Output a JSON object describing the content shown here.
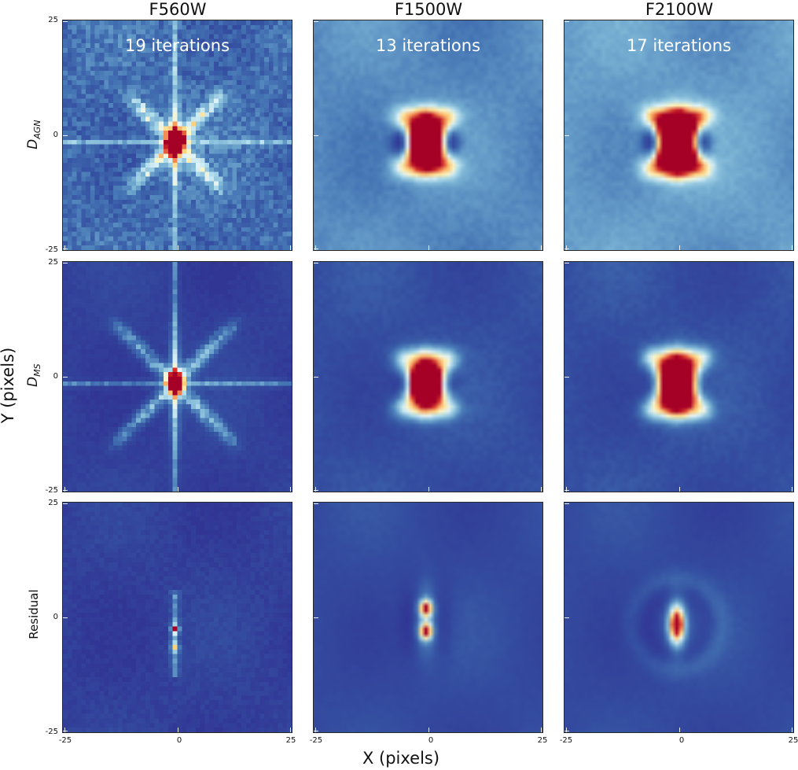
{
  "figure": {
    "column_titles": [
      "F560W",
      "F1500W",
      "F2100W"
    ],
    "row_labels": [
      {
        "main": "D",
        "sub": "AGN"
      },
      {
        "main": "D",
        "sub": "MS"
      },
      {
        "main": "Residual",
        "sub": ""
      }
    ],
    "iterations": [
      "19 iterations",
      "13 iterations",
      "17 iterations"
    ],
    "xlabel": "X (pixels)",
    "ylabel": "Y (pixels)",
    "xticks": [
      "-25",
      "0",
      "25"
    ],
    "yticks": [
      "25",
      "0",
      "-25"
    ]
  },
  "chart_data": {
    "type": "heatmap",
    "title": "",
    "xlabel": "X (pixels)",
    "ylabel": "Y (pixels)",
    "xlim": [
      -25,
      25
    ],
    "ylim": [
      -25,
      25
    ],
    "colormap": "RdYlBu_r",
    "grid": false,
    "columns": [
      "F560W",
      "F1500W",
      "F2100W"
    ],
    "rows": [
      "D_AGN",
      "D_MS",
      "Residual"
    ],
    "annotations": [
      {
        "panel": "D_AGN/F560W",
        "text": "19 iterations"
      },
      {
        "panel": "D_AGN/F1500W",
        "text": "13 iterations"
      },
      {
        "panel": "D_AGN/F2100W",
        "text": "17 iterations"
      }
    ],
    "panels": [
      {
        "row": "D_AGN",
        "column": "F560W",
        "grid": 50,
        "background": 0.22,
        "noise": 0.08,
        "peak": [
          -1,
          -1
        ],
        "peak_value": 0.95,
        "core_sigma": 1.2,
        "x_arms": 0.55,
        "arm_len": 13,
        "spikes": 0.25,
        "side_lobes": 0.0,
        "style": "pixelated-noisy"
      },
      {
        "row": "D_AGN",
        "column": "F1500W",
        "grid": 50,
        "background": 0.3,
        "noise": 0.02,
        "peak": [
          -1,
          -1
        ],
        "peak_value": 1.0,
        "core_sigma": 2.0,
        "x_arms": 0.7,
        "arm_len": 7,
        "spikes": 0.0,
        "side_lobes": -0.35,
        "style": "smooth"
      },
      {
        "row": "D_AGN",
        "column": "F2100W",
        "grid": 50,
        "background": 0.34,
        "noise": 0.02,
        "peak": [
          -1,
          -1
        ],
        "peak_value": 1.0,
        "core_sigma": 2.4,
        "x_arms": 0.7,
        "arm_len": 8,
        "spikes": 0.0,
        "side_lobes": -0.4,
        "style": "smooth"
      },
      {
        "row": "D_MS",
        "column": "F560W",
        "grid": 50,
        "background": 0.05,
        "noise": 0.02,
        "peak": [
          -1,
          -1
        ],
        "peak_value": 0.95,
        "core_sigma": 1.0,
        "x_arms": 0.5,
        "arm_len": 17,
        "spikes": 0.3,
        "side_lobes": 0.0,
        "style": "pixelated"
      },
      {
        "row": "D_MS",
        "column": "F1500W",
        "grid": 50,
        "background": 0.12,
        "noise": 0.02,
        "peak": [
          -1,
          -1
        ],
        "peak_value": 1.0,
        "core_sigma": 2.0,
        "x_arms": 0.7,
        "arm_len": 7,
        "spikes": 0.0,
        "side_lobes": -0.1,
        "style": "smooth"
      },
      {
        "row": "D_MS",
        "column": "F2100W",
        "grid": 50,
        "background": 0.12,
        "noise": 0.02,
        "peak": [
          -1,
          -1
        ],
        "peak_value": 1.0,
        "core_sigma": 2.4,
        "x_arms": 0.7,
        "arm_len": 8,
        "spikes": 0.0,
        "side_lobes": -0.1,
        "style": "smooth"
      },
      {
        "row": "Residual",
        "column": "F560W",
        "grid": 50,
        "background": 0.05,
        "noise": 0.03,
        "peak": [
          -1,
          -3
        ],
        "peak_value": 0.95,
        "core_sigma": 0.6,
        "x_arms": 0.0,
        "arm_len": 0,
        "spikes": 0.0,
        "side_lobes": 0.0,
        "style": "residual-narrow"
      },
      {
        "row": "Residual",
        "column": "F1500W",
        "grid": 50,
        "background": 0.1,
        "noise": 0.01,
        "peak": [
          -1,
          0
        ],
        "peak_value": 0.95,
        "core_sigma": 1.0,
        "x_arms": 0.0,
        "arm_len": 0,
        "spikes": 0.0,
        "side_lobes": -0.1,
        "style": "residual-double"
      },
      {
        "row": "Residual",
        "column": "F2100W",
        "grid": 50,
        "background": 0.1,
        "noise": 0.01,
        "peak": [
          -1,
          -1
        ],
        "peak_value": 0.95,
        "core_sigma": 1.2,
        "x_arms": 0.0,
        "arm_len": 0,
        "spikes": 0.0,
        "side_lobes": -0.1,
        "style": "residual-ring"
      }
    ]
  }
}
